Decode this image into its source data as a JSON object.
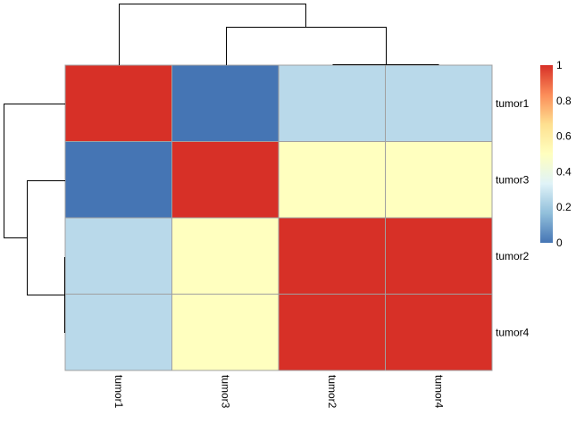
{
  "chart_data": {
    "type": "heatmap",
    "title": "",
    "rows": [
      "tumor1",
      "tumor3",
      "tumor2",
      "tumor4"
    ],
    "columns": [
      "tumor1",
      "tumor3",
      "tumor2",
      "tumor4"
    ],
    "values": [
      [
        1,
        0,
        0.25,
        0.25
      ],
      [
        0,
        1,
        0.5,
        0.5
      ],
      [
        0.25,
        0.5,
        1,
        1
      ],
      [
        0.25,
        0.5,
        1,
        1
      ]
    ],
    "color_scale": {
      "min": 0,
      "max": 1,
      "ticks": [
        "0",
        "0.2",
        "0.4",
        "0.6",
        "0.8",
        "1"
      ],
      "palette": [
        "#4575B4",
        "#91BFDB",
        "#E0F3F8",
        "#FFFFBF",
        "#FEE090",
        "#FC8D59",
        "#D73027"
      ]
    },
    "cell_border_color": "#A0A0A0",
    "column_dendrogram": "tumor1 | (tumor3 | (tumor2, tumor4))",
    "row_dendrogram": "tumor1 | (tumor3 | (tumor2, tumor4))"
  }
}
